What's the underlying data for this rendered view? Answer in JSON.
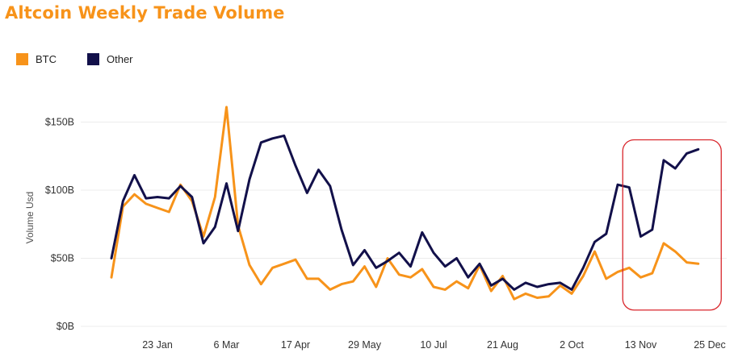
{
  "title": "Altcoin Weekly Trade Volume",
  "colors": {
    "btc": "#f7931a",
    "other": "#12104a",
    "highlight": "#d9262c",
    "grid": "#ececec"
  },
  "chart_data": {
    "type": "line",
    "title": "Altcoin Weekly Trade Volume",
    "xlabel": "",
    "ylabel": "Volume Usd",
    "ylim": [
      0,
      170
    ],
    "y_ticks": [
      {
        "value": 0,
        "label": "$0B"
      },
      {
        "value": 50,
        "label": "$50B"
      },
      {
        "value": 100,
        "label": "$100B"
      },
      {
        "value": 150,
        "label": "$150B"
      }
    ],
    "x_ticks": [
      {
        "index": 4,
        "label": "23 Jan"
      },
      {
        "index": 10,
        "label": "6 Mar"
      },
      {
        "index": 16,
        "label": "17 Apr"
      },
      {
        "index": 22,
        "label": "29 May"
      },
      {
        "index": 28,
        "label": "10 Jul"
      },
      {
        "index": 34,
        "label": "21 Aug"
      },
      {
        "index": 40,
        "label": "2 Oct"
      },
      {
        "index": 46,
        "label": "13 Nov"
      },
      {
        "index": 52,
        "label": "25 Dec"
      }
    ],
    "legend": {
      "position": "top-left",
      "entries": [
        "BTC",
        "Other"
      ]
    },
    "grid": true,
    "highlight": {
      "from_index": 45,
      "to_index": 53,
      "y_from": 12,
      "y_to": 137
    },
    "series": [
      {
        "name": "BTC",
        "color": "#f7931a",
        "values": [
          36,
          88,
          97,
          90,
          87,
          84,
          104,
          92,
          66,
          95,
          161,
          74,
          45,
          31,
          43,
          46,
          49,
          35,
          35,
          27,
          31,
          33,
          44,
          29,
          50,
          38,
          36,
          42,
          29,
          27,
          33,
          28,
          45,
          26,
          37,
          20,
          24,
          21,
          22,
          30,
          24,
          37,
          55,
          35,
          40,
          43,
          36,
          39,
          61,
          55,
          47,
          46
        ]
      },
      {
        "name": "Other",
        "color": "#12104a",
        "values": [
          50,
          92,
          111,
          94,
          95,
          94,
          103,
          95,
          61,
          73,
          105,
          70,
          108,
          135,
          138,
          140,
          118,
          98,
          115,
          103,
          71,
          45,
          56,
          43,
          48,
          54,
          44,
          69,
          54,
          44,
          50,
          36,
          46,
          30,
          35,
          27,
          32,
          29,
          31,
          32,
          27,
          43,
          62,
          68,
          104,
          102,
          66,
          71,
          122,
          116,
          127,
          130
        ]
      }
    ]
  }
}
